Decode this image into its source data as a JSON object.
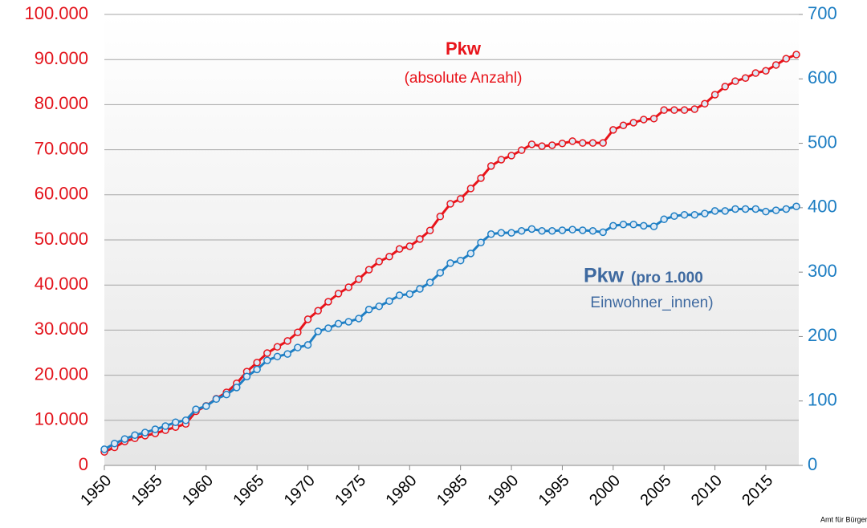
{
  "chart_data": {
    "type": "line",
    "x": [
      1950,
      1951,
      1952,
      1953,
      1954,
      1955,
      1956,
      1957,
      1958,
      1959,
      1960,
      1961,
      1962,
      1963,
      1964,
      1965,
      1966,
      1967,
      1968,
      1969,
      1970,
      1971,
      1972,
      1973,
      1974,
      1975,
      1976,
      1977,
      1978,
      1979,
      1980,
      1981,
      1982,
      1983,
      1984,
      1985,
      1986,
      1987,
      1988,
      1989,
      1990,
      1991,
      1992,
      1993,
      1994,
      1995,
      1996,
      1997,
      1998,
      1999,
      2000,
      2001,
      2002,
      2003,
      2004,
      2005,
      2006,
      2007,
      2008,
      2009,
      2010,
      2011,
      2012,
      2013,
      2014,
      2015,
      2016,
      2017,
      2018
    ],
    "series": [
      {
        "name": "Pkw (absolute Anzahl)",
        "color": "#e8141b",
        "axis": "y",
        "values": [
          3000,
          4000,
          5300,
          6000,
          6600,
          7100,
          7800,
          8500,
          9200,
          12000,
          13200,
          14800,
          16200,
          18200,
          20800,
          22800,
          24900,
          26300,
          27600,
          29500,
          32400,
          34300,
          36300,
          38100,
          39500,
          41300,
          43400,
          45200,
          46300,
          48000,
          48600,
          50200,
          52100,
          55200,
          58000,
          59100,
          61400,
          63700,
          66400,
          67800,
          68700,
          69900,
          71200,
          70800,
          71000,
          71400,
          71900,
          71500,
          71500,
          71500,
          74400,
          75400,
          76000,
          76700,
          76900,
          78800,
          78800,
          78800,
          79000,
          80200,
          82200,
          84000,
          85200,
          85900,
          87000,
          87500,
          88800,
          90200,
          91100
        ]
      },
      {
        "name": "Pkw pro 1.000 Einwohner_innen",
        "color": "#1f7fc4",
        "axis": "y2",
        "values": [
          25,
          34,
          41,
          47,
          51,
          56,
          61,
          67,
          70,
          87,
          92,
          103,
          110,
          121,
          138,
          149,
          163,
          169,
          173,
          183,
          187,
          208,
          213,
          220,
          223,
          228,
          242,
          247,
          255,
          264,
          266,
          274,
          284,
          299,
          314,
          318,
          329,
          346,
          359,
          361,
          361,
          364,
          367,
          364,
          364,
          365,
          366,
          365,
          364,
          362,
          372,
          374,
          374,
          372,
          371,
          382,
          387,
          389,
          389,
          391,
          395,
          395,
          398,
          398,
          398,
          394,
          396,
          398,
          402
        ]
      }
    ],
    "xlim": [
      1950,
      2018
    ],
    "xticks": [
      1950,
      1955,
      1960,
      1965,
      1970,
      1975,
      1980,
      1985,
      1990,
      1995,
      2000,
      2005,
      2010,
      2015
    ],
    "ylim": [
      0,
      100000
    ],
    "yticks": [
      0,
      {
        "value": 10000,
        "label": "10.000"
      },
      {
        "value": 20000,
        "label": "20.000"
      },
      {
        "value": 30000,
        "label": "30.000"
      },
      {
        "value": 40000,
        "label": "40.000"
      },
      {
        "value": 50000,
        "label": "50.000"
      },
      {
        "value": 60000,
        "label": "60.000"
      },
      {
        "value": 70000,
        "label": "70.000"
      },
      {
        "value": 80000,
        "label": "80.000"
      },
      {
        "value": 90000,
        "label": "90.000"
      },
      {
        "value": 100000,
        "label": "100.000"
      }
    ],
    "y2lim": [
      0,
      700
    ],
    "y2ticks": [
      0,
      100,
      200,
      300,
      400,
      500,
      600,
      700
    ],
    "grid": true,
    "annotations": [
      "Pkw",
      "(absolute Anzahl)",
      "Pkw",
      "(pro 1.000",
      "Einwohner_innen)"
    ],
    "source": "Amt für Bürgers"
  }
}
